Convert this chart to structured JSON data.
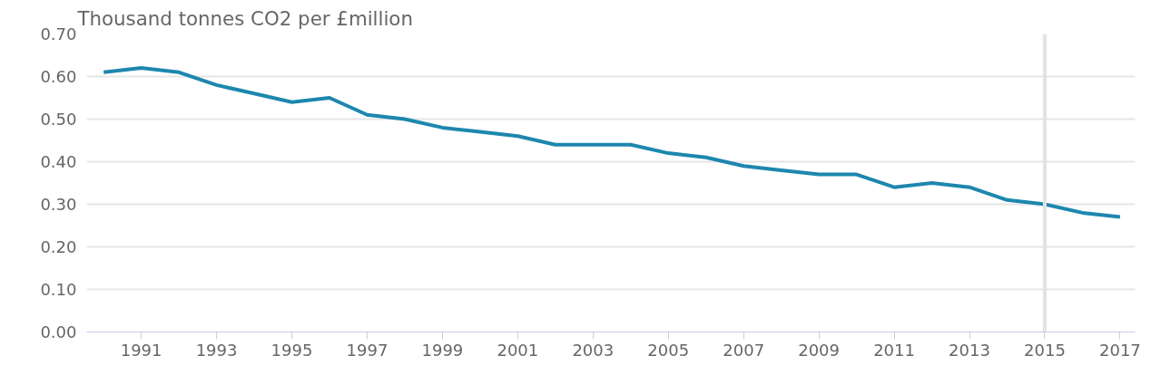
{
  "chart_data": {
    "type": "line",
    "title": "Thousand tonnes CO2 per £million",
    "x": [
      1990,
      1991,
      1992,
      1993,
      1994,
      1995,
      1996,
      1997,
      1998,
      1999,
      2000,
      2001,
      2002,
      2003,
      2004,
      2005,
      2006,
      2007,
      2008,
      2009,
      2010,
      2011,
      2012,
      2013,
      2014,
      2015,
      2016,
      2017
    ],
    "series": [
      {
        "color": "#1d87ae",
        "values": [
          0.61,
          0.62,
          0.61,
          0.58,
          0.56,
          0.54,
          0.55,
          0.51,
          0.5,
          0.48,
          0.47,
          0.46,
          0.44,
          0.44,
          0.44,
          0.42,
          0.41,
          0.39,
          0.38,
          0.37,
          0.37,
          0.34,
          0.35,
          0.34,
          0.31,
          0.3,
          0.28,
          0.27
        ]
      }
    ],
    "xlim": [
      1989.55,
      2017.4
    ],
    "xticks": [
      1991,
      1993,
      1995,
      1997,
      1999,
      2001,
      2003,
      2005,
      2007,
      2009,
      2011,
      2013,
      2015,
      2017
    ],
    "ylim": [
      0,
      0.7
    ],
    "yticks": [
      {
        "value": 0,
        "label": "0.00"
      },
      {
        "value": 0.1,
        "label": "0.10"
      },
      {
        "value": 0.2,
        "label": "0.20"
      },
      {
        "value": 0.3,
        "label": "0.30"
      },
      {
        "value": 0.4,
        "label": "0.40"
      },
      {
        "value": 0.5,
        "label": "0.50"
      },
      {
        "value": 0.6,
        "label": "0.60"
      },
      {
        "value": 0.7,
        "label": "0.70"
      }
    ],
    "grid": "y",
    "marker": "none",
    "line_style": "solid",
    "ref_lines": [
      {
        "axis": "x",
        "value": 2015,
        "label": null,
        "color": "#e3e3e3"
      }
    ]
  }
}
